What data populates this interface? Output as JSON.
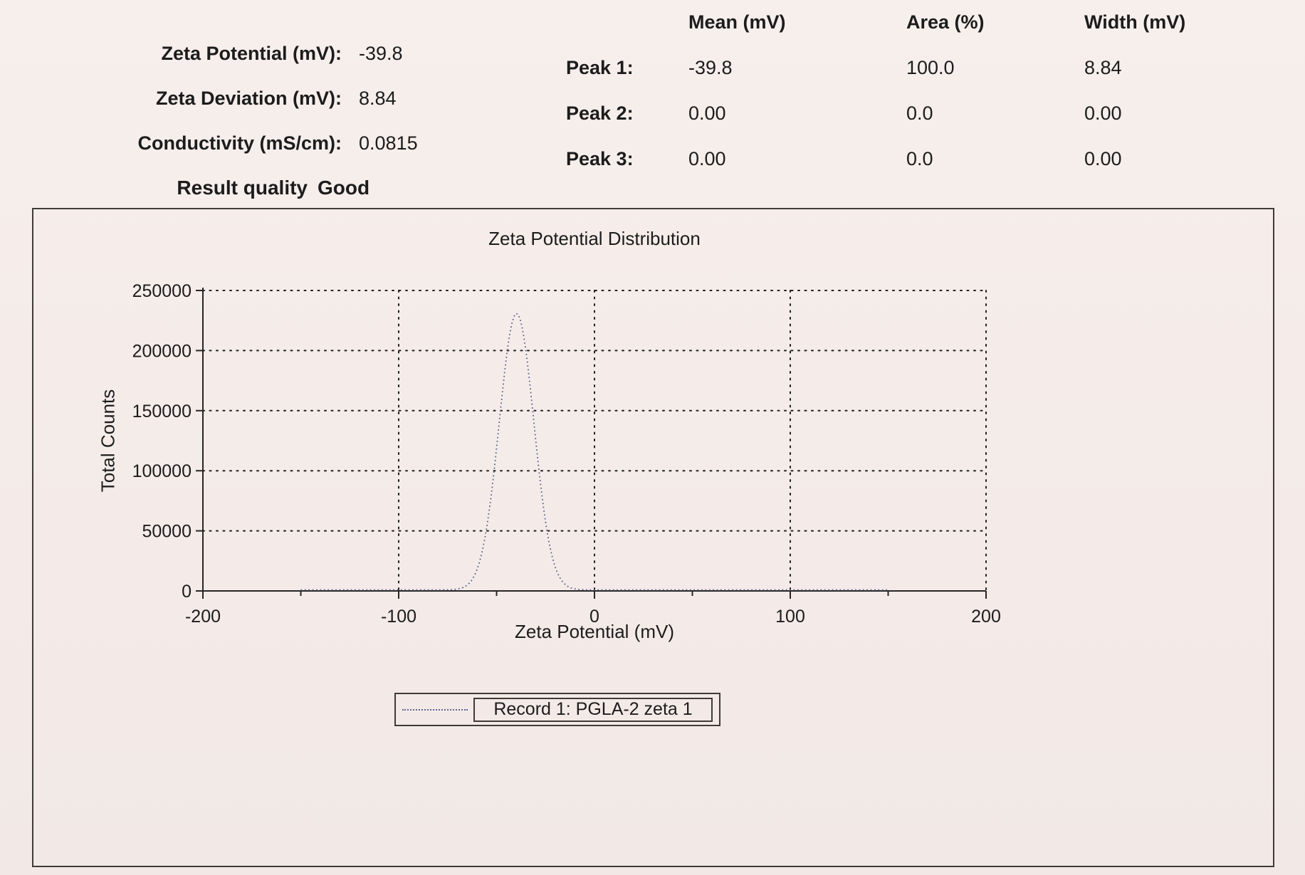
{
  "page": {
    "background": "#f5ece9",
    "ink": "#1c1c1c"
  },
  "summary": {
    "rows": [
      {
        "label": "Zeta Potential (mV):",
        "value": "-39.8"
      },
      {
        "label": "Zeta Deviation (mV):",
        "value": "8.84"
      },
      {
        "label": "Conductivity (mS/cm):",
        "value": "0.0815"
      }
    ],
    "quality_label": "Result quality",
    "quality_value": "Good"
  },
  "peak_table": {
    "headers": {
      "mean": "Mean (mV)",
      "area": "Area (%)",
      "width": "Width (mV)"
    },
    "rows": [
      {
        "label": "Peak 1:",
        "mean": "-39.8",
        "area": "100.0",
        "width": "8.84"
      },
      {
        "label": "Peak 2:",
        "mean": "0.00",
        "area": "0.0",
        "width": "0.00"
      },
      {
        "label": "Peak 3:",
        "mean": "0.00",
        "area": "0.0",
        "width": "0.00"
      }
    ]
  },
  "chart_data": {
    "type": "line",
    "title": "Zeta Potential Distribution",
    "xlabel": "Zeta Potential (mV)",
    "ylabel": "Total Counts",
    "xlim": [
      -200,
      200
    ],
    "ylim": [
      0,
      250000
    ],
    "x_ticks": [
      -200,
      -100,
      0,
      100,
      200
    ],
    "x_minor_step": 50,
    "y_ticks": [
      0,
      50000,
      100000,
      150000,
      200000,
      250000
    ],
    "x_gridlines": [
      -100,
      0,
      100,
      200
    ],
    "grid_style": "dotted",
    "series": [
      {
        "name": "Record 1: PGLA-2 zeta 1",
        "line_style": "dotted",
        "color": "#5c6590",
        "shape": "gaussian",
        "mean": -39.8,
        "sd": 8.84,
        "peak": 230000,
        "x_range": [
          -150,
          150
        ]
      }
    ],
    "legend": {
      "position": "bottom",
      "entries": [
        "Record 1: PGLA-2 zeta 1"
      ]
    }
  }
}
